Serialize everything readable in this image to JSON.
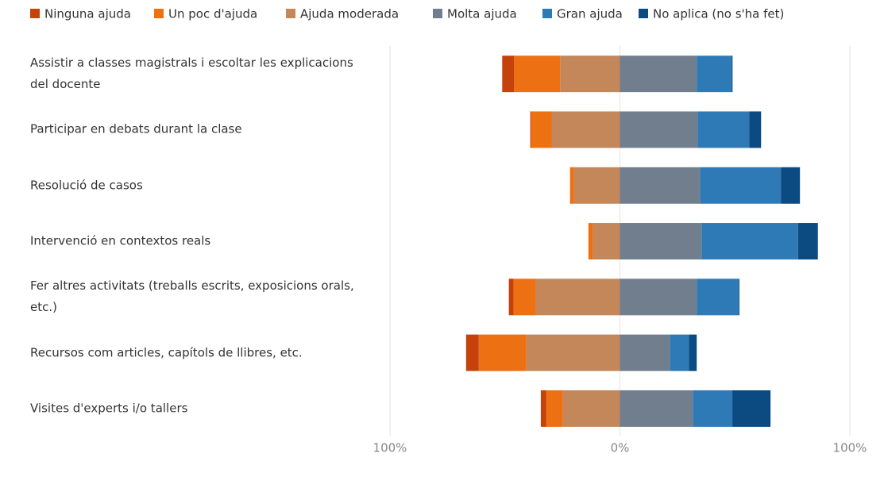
{
  "chart_data": {
    "type": "diverging_bar",
    "categories": [
      "Assistir a classes magistrals i escoltar les explicacions del docente",
      "Participar en debats durant la clase",
      "Resolució de casos",
      "Intervenció en contextos reals",
      "Fer altres activitats (treballs escrits, exposicions orals, etc.)",
      "Recursos com articles, capítols de llibres, etc.",
      "Visites d'experts i/o tallers"
    ],
    "series": [
      {
        "name": "Ninguna ajuda",
        "color": "#c5420c",
        "values": [
          -5.2,
          -0.3,
          0,
          0,
          -2,
          -5.5,
          -2.4
        ]
      },
      {
        "name": "Un poc d'ajuda",
        "color": "#ed7012",
        "values": [
          -20,
          -9,
          -1.7,
          -2,
          -9.7,
          -20.7,
          -7.2
        ]
      },
      {
        "name": "Ajuda moderada",
        "color": "#c4875a",
        "values": [
          -26,
          -29.7,
          -20,
          -11.7,
          -36.6,
          -40.7,
          -24.8
        ]
      },
      {
        "name": "Molta ajuda",
        "color": "#717e8e",
        "values": [
          33.4,
          33.8,
          34.8,
          35.5,
          33.4,
          21.7,
          31.7
        ]
      },
      {
        "name": "Gran ajuda",
        "color": "#2e7ab6",
        "values": [
          15.2,
          22.4,
          35.2,
          42,
          18.3,
          8.3,
          17.2
        ]
      },
      {
        "name": "No aplica (no s'ha fet)",
        "color": "#0c4a82",
        "values": [
          0.4,
          5.2,
          8.3,
          8.6,
          0.3,
          3.4,
          16.6
        ]
      }
    ],
    "xlim": [
      -100,
      100
    ],
    "xticks": [
      {
        "value": -100,
        "label": "100%"
      },
      {
        "value": 0,
        "label": "0%"
      },
      {
        "value": 100,
        "label": "100%"
      }
    ],
    "grid": true
  }
}
